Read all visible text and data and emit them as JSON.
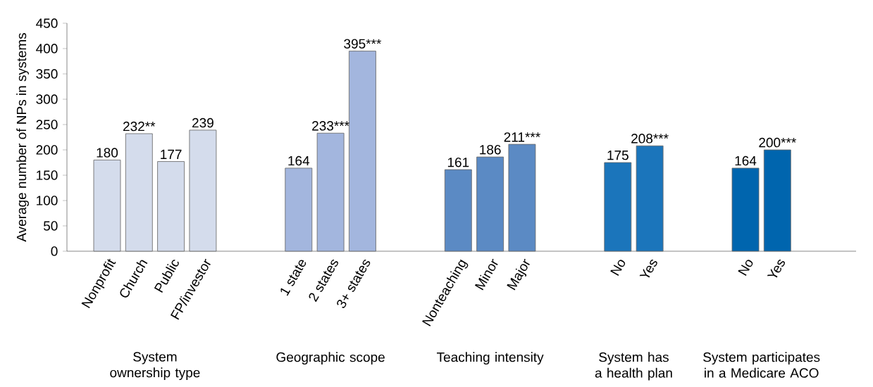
{
  "chart_data": {
    "type": "bar",
    "categories": [
      "Nonprofit",
      "Church",
      "Public",
      "FP/investor",
      null,
      null,
      "1 state",
      "2 states",
      "3+ states",
      null,
      null,
      "Nonteaching",
      "Minor",
      "Major",
      null,
      null,
      "No",
      "Yes",
      null,
      null,
      "No",
      "Yes"
    ],
    "values": [
      180,
      232,
      177,
      239,
      null,
      null,
      164,
      233,
      395,
      null,
      null,
      161,
      186,
      211,
      null,
      null,
      175,
      208,
      null,
      null,
      164,
      200
    ],
    "value_labels": [
      "180",
      "232**",
      "177",
      "239",
      null,
      null,
      "164",
      "233***",
      "395***",
      null,
      null,
      "161",
      "186",
      "211***",
      null,
      null,
      "175",
      "208***",
      null,
      null,
      "164",
      "200***"
    ],
    "colors": [
      "#d4dcec",
      "#d4dcec",
      "#d4dcec",
      "#d4dcec",
      null,
      null,
      "#a3b6de",
      "#a3b6de",
      "#a3b6de",
      null,
      null,
      "#5b8ac4",
      "#5b8ac4",
      "#5b8ac4",
      null,
      null,
      "#1b75bb",
      "#1b75bb",
      null,
      null,
      "#0065ae",
      "#0065ae"
    ],
    "ylabel": "Average number of NPs in systems",
    "ylim": [
      0,
      450
    ],
    "yticks": [
      0,
      50,
      100,
      150,
      200,
      250,
      300,
      350,
      400,
      450
    ],
    "annotations": [
      "System ownership type",
      "Geographic scope",
      "Teaching intensity",
      "System has a health plan",
      "System participates in a Medicare ACO"
    ]
  }
}
